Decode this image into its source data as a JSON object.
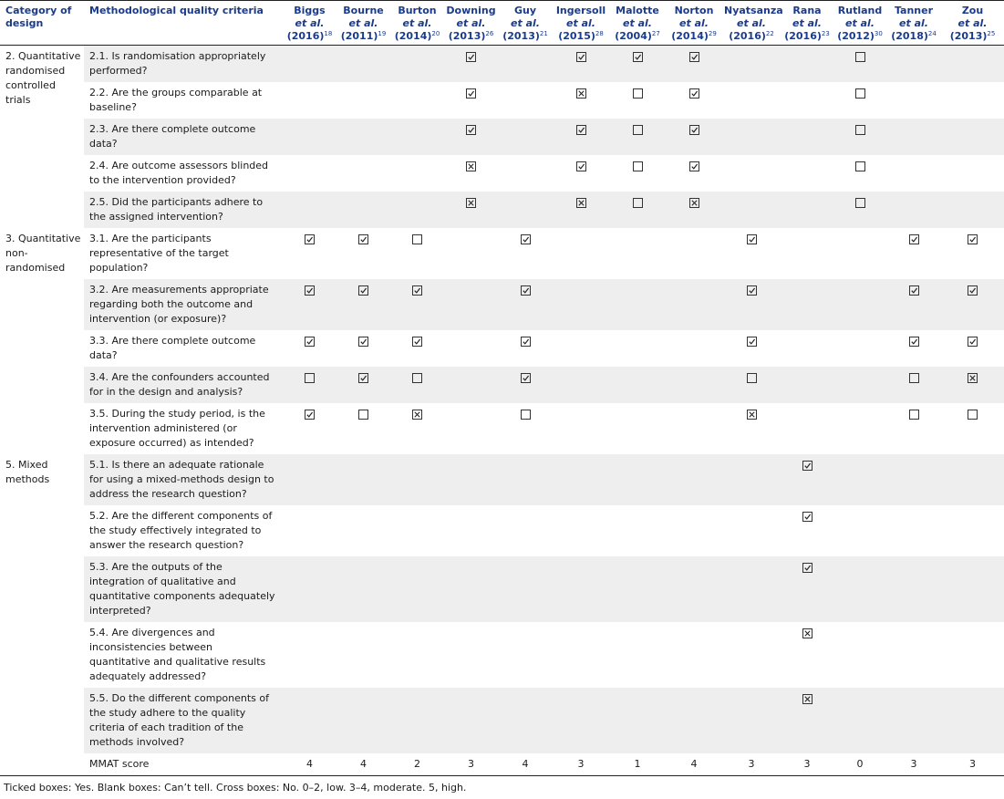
{
  "header": {
    "category": "Category of design",
    "criteria": "Methodological quality criteria",
    "et_al": "et al."
  },
  "studies": [
    {
      "name": "Biggs",
      "year": "(2016)",
      "ref": "18"
    },
    {
      "name": "Bourne",
      "year": "(2011)",
      "ref": "19"
    },
    {
      "name": "Burton",
      "year": "(2014)",
      "ref": "20"
    },
    {
      "name": "Downing",
      "year": "(2013)",
      "ref": "26"
    },
    {
      "name": "Guy",
      "year": "(2013)",
      "ref": "21"
    },
    {
      "name": "Ingersoll",
      "year": "(2015)",
      "ref": "28"
    },
    {
      "name": "Malotte",
      "year": "(2004)",
      "ref": "27"
    },
    {
      "name": "Norton",
      "year": "(2014)",
      "ref": "29"
    },
    {
      "name": "Nyatsanza",
      "year": "(2016)",
      "ref": "22"
    },
    {
      "name": "Rana",
      "year": "(2016)",
      "ref": "23"
    },
    {
      "name": "Rutland",
      "year": "(2012)",
      "ref": "30"
    },
    {
      "name": "Tanner",
      "year": "(2018)",
      "ref": "24"
    },
    {
      "name": "Zou",
      "year": "(2013)",
      "ref": "25"
    }
  ],
  "rows": [
    {
      "category": "2. Quantitative randomised controlled trials",
      "catspan": 5,
      "criterion": "2.1. Is randomisation appropriately performed?",
      "marks": [
        "",
        "",
        "",
        "Y",
        "",
        "Y",
        "Y",
        "Y",
        "",
        "",
        "B",
        "",
        ""
      ]
    },
    {
      "criterion": "2.2. Are the groups comparable at baseline?",
      "marks": [
        "",
        "",
        "",
        "Y",
        "",
        "X",
        "B",
        "Y",
        "",
        "",
        "B",
        "",
        ""
      ]
    },
    {
      "criterion": "2.3. Are there complete outcome data?",
      "marks": [
        "",
        "",
        "",
        "Y",
        "",
        "Y",
        "B",
        "Y",
        "",
        "",
        "B",
        "",
        ""
      ]
    },
    {
      "criterion": "2.4. Are outcome assessors blinded to the intervention provided?",
      "marks": [
        "",
        "",
        "",
        "X",
        "",
        "Y",
        "B",
        "Y",
        "",
        "",
        "B",
        "",
        ""
      ]
    },
    {
      "criterion": "2.5. Did the participants adhere to the assigned intervention?",
      "marks": [
        "",
        "",
        "",
        "X",
        "",
        "X",
        "B",
        "X",
        "",
        "",
        "B",
        "",
        ""
      ]
    },
    {
      "category": "3. Quantitative non-randomised",
      "catspan": 5,
      "criterion": "3.1. Are the participants representative of the target population?",
      "marks": [
        "Y",
        "Y",
        "B",
        "",
        "Y",
        "",
        "",
        "",
        "Y",
        "",
        "",
        "Y",
        "Y"
      ]
    },
    {
      "criterion": "3.2. Are measurements appropriate regarding both the outcome and intervention (or exposure)?",
      "marks": [
        "Y",
        "Y",
        "Y",
        "",
        "Y",
        "",
        "",
        "",
        "Y",
        "",
        "",
        "Y",
        "Y"
      ]
    },
    {
      "criterion": "3.3. Are there complete outcome data?",
      "marks": [
        "Y",
        "Y",
        "Y",
        "",
        "Y",
        "",
        "",
        "",
        "Y",
        "",
        "",
        "Y",
        "Y"
      ]
    },
    {
      "criterion": "3.4. Are the confounders accounted for in the design and analysis?",
      "marks": [
        "B",
        "Y",
        "B",
        "",
        "Y",
        "",
        "",
        "",
        "B",
        "",
        "",
        "B",
        "X"
      ]
    },
    {
      "criterion": "3.5. During the study period, is the intervention administered (or exposure occurred) as intended?",
      "marks": [
        "Y",
        "B",
        "X",
        "",
        "B",
        "",
        "",
        "",
        "X",
        "",
        "",
        "B",
        "B"
      ]
    },
    {
      "category": "5. Mixed methods",
      "catspan": 5,
      "criterion": "5.1. Is there an adequate rationale for using a mixed-methods design to address the research question?",
      "marks": [
        "",
        "",
        "",
        "",
        "",
        "",
        "",
        "",
        "",
        "Y",
        "",
        "",
        ""
      ]
    },
    {
      "criterion": "5.2. Are the different components of the study effectively integrated to answer the research question?",
      "marks": [
        "",
        "",
        "",
        "",
        "",
        "",
        "",
        "",
        "",
        "Y",
        "",
        "",
        ""
      ]
    },
    {
      "criterion": "5.3. Are the outputs of the integration of qualitative and quantitative components adequately interpreted?",
      "marks": [
        "",
        "",
        "",
        "",
        "",
        "",
        "",
        "",
        "",
        "Y",
        "",
        "",
        ""
      ]
    },
    {
      "criterion": "5.4. Are divergences and inconsistencies between quantitative and qualitative results adequately addressed?",
      "marks": [
        "",
        "",
        "",
        "",
        "",
        "",
        "",
        "",
        "",
        "X",
        "",
        "",
        ""
      ]
    },
    {
      "criterion": "5.5. Do the different components of the study adhere to the quality criteria of each tradition of the methods involved?",
      "marks": [
        "",
        "",
        "",
        "",
        "",
        "",
        "",
        "",
        "",
        "X",
        "",
        "",
        ""
      ]
    }
  ],
  "score": {
    "label": "MMAT score",
    "values": [
      "4",
      "4",
      "2",
      "3",
      "4",
      "3",
      "1",
      "4",
      "3",
      "3",
      "0",
      "3",
      "3"
    ]
  },
  "footnote": "Ticked boxes: Yes. Blank boxes: Can’t tell. Cross boxes: No. 0–2, low. 3–4, moderate. 5, high."
}
